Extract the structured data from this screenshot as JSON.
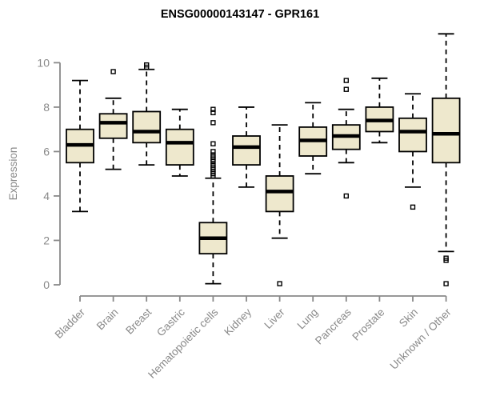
{
  "page": {
    "title": "ENSG00000143147 - GPR161"
  },
  "chart_data": {
    "type": "boxplot",
    "title": "ENSG00000143147 - GPR161",
    "ylabel": "Expression",
    "xlabel": "",
    "yticks": [
      0,
      2,
      4,
      6,
      8,
      10
    ],
    "ylim": [
      0,
      11.5
    ],
    "grid": false,
    "legend": false,
    "categories": [
      "Bladder",
      "Brain",
      "Breast",
      "Gastric",
      "Hematopoietic cells",
      "Kidney",
      "Liver",
      "Lung",
      "Pancreas",
      "Prostate",
      "Skin",
      "Unknown / Other"
    ],
    "boxes": [
      {
        "category": "Bladder",
        "whisker_low": 3.3,
        "q1": 5.5,
        "median": 6.3,
        "q3": 7.0,
        "whisker_high": 9.2,
        "outliers": []
      },
      {
        "category": "Brain",
        "whisker_low": 5.2,
        "q1": 6.6,
        "median": 7.3,
        "q3": 7.7,
        "whisker_high": 8.4,
        "outliers": [
          9.6
        ]
      },
      {
        "category": "Breast",
        "whisker_low": 5.4,
        "q1": 6.4,
        "median": 6.9,
        "q3": 7.8,
        "whisker_high": 9.7,
        "outliers": [
          9.9,
          9.8
        ]
      },
      {
        "category": "Gastric",
        "whisker_low": 4.9,
        "q1": 5.4,
        "median": 6.4,
        "q3": 7.0,
        "whisker_high": 7.9,
        "outliers": []
      },
      {
        "category": "Hematopoietic cells",
        "whisker_low": 0.05,
        "q1": 1.4,
        "median": 2.1,
        "q3": 2.8,
        "whisker_high": 4.8,
        "outliers": [
          7.9,
          7.75,
          7.3,
          6.35,
          6.0,
          5.85,
          5.75,
          5.65,
          5.55,
          5.4,
          5.3,
          5.2,
          5.1,
          5.0,
          4.9
        ]
      },
      {
        "category": "Kidney",
        "whisker_low": 4.4,
        "q1": 5.4,
        "median": 6.2,
        "q3": 6.7,
        "whisker_high": 8.0,
        "outliers": []
      },
      {
        "category": "Liver",
        "whisker_low": 2.1,
        "q1": 3.3,
        "median": 4.2,
        "q3": 4.9,
        "whisker_high": 7.2,
        "outliers": [
          0.05
        ]
      },
      {
        "category": "Lung",
        "whisker_low": 5.0,
        "q1": 5.8,
        "median": 6.5,
        "q3": 7.1,
        "whisker_high": 8.2,
        "outliers": []
      },
      {
        "category": "Pancreas",
        "whisker_low": 5.5,
        "q1": 6.1,
        "median": 6.7,
        "q3": 7.2,
        "whisker_high": 7.9,
        "outliers": [
          9.2,
          8.8,
          4.0
        ]
      },
      {
        "category": "Prostate",
        "whisker_low": 6.4,
        "q1": 6.9,
        "median": 7.4,
        "q3": 8.0,
        "whisker_high": 9.3,
        "outliers": []
      },
      {
        "category": "Skin",
        "whisker_low": 4.4,
        "q1": 6.0,
        "median": 6.9,
        "q3": 7.5,
        "whisker_high": 8.6,
        "outliers": [
          3.5
        ]
      },
      {
        "category": "Unknown / Other",
        "whisker_low": 1.5,
        "q1": 5.5,
        "median": 6.8,
        "q3": 8.4,
        "whisker_high": 11.3,
        "outliers": [
          1.2,
          1.1,
          0.05
        ]
      }
    ],
    "colors": {
      "box_fill": "#EEE8CD",
      "box_stroke": "#000000",
      "median": "#000000",
      "whisker": "#000000",
      "outlier": "#000000",
      "axis": "#898989",
      "tick_label": "#898989",
      "title": "#000000",
      "background": "#FFFFFF"
    }
  }
}
